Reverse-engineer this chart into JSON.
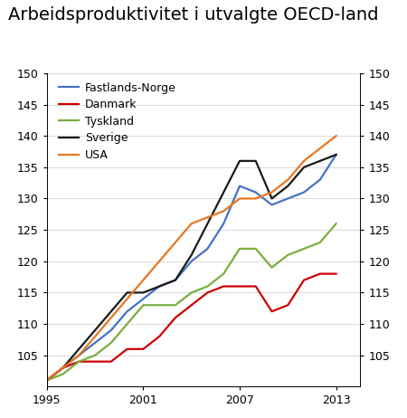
{
  "title": "Arbeidsproduktivitet i utvalgte OECD-land",
  "years": [
    1995,
    1996,
    1997,
    1998,
    1999,
    2000,
    2001,
    2002,
    2003,
    2004,
    2005,
    2006,
    2007,
    2008,
    2009,
    2010,
    2011,
    2012,
    2013
  ],
  "fastlands_norge": [
    101,
    103,
    105,
    107,
    109,
    112,
    114,
    116,
    117,
    120,
    122,
    126,
    132,
    131,
    129,
    130,
    131,
    133,
    137
  ],
  "danmark": [
    101,
    103,
    104,
    104,
    104,
    106,
    106,
    108,
    111,
    113,
    115,
    116,
    116,
    116,
    112,
    113,
    117,
    118,
    118
  ],
  "tyskland": [
    101,
    102,
    104,
    105,
    107,
    110,
    113,
    113,
    113,
    115,
    116,
    118,
    122,
    122,
    119,
    121,
    122,
    123,
    126
  ],
  "sverige": [
    101,
    103,
    106,
    109,
    112,
    115,
    115,
    116,
    117,
    121,
    126,
    131,
    136,
    136,
    130,
    132,
    135,
    136,
    137
  ],
  "usa": [
    101,
    103,
    105,
    108,
    111,
    114,
    117,
    120,
    123,
    126,
    127,
    128,
    130,
    130,
    131,
    133,
    136,
    138,
    140
  ],
  "colors": {
    "fastlands_norge": "#4472C4",
    "danmark": "#CC0000",
    "tyskland": "#7AAE3F",
    "sverige": "#1A1A1A",
    "usa": "#E87722"
  },
  "ylim_bottom": 100,
  "ylim_top": 150,
  "xlim_left": 1995,
  "xlim_right": 2014.5,
  "yticks": [
    105,
    110,
    115,
    120,
    125,
    130,
    135,
    140,
    145,
    150
  ],
  "xticks": [
    1995,
    2001,
    2007,
    2013
  ],
  "legend_labels": [
    "Fastlands-Norge",
    "Danmark",
    "Tyskland",
    "Sverige",
    "USA"
  ],
  "title_fontsize": 14,
  "tick_fontsize": 9,
  "legend_fontsize": 9,
  "linewidth": 1.6
}
